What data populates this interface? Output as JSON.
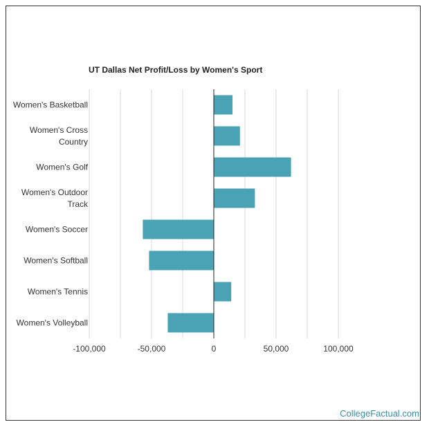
{
  "credit": "CollegeFactual.com",
  "colors": {
    "bar": "#4aa3b4",
    "grid": "#d9d9d9",
    "zero_axis": "#222222",
    "credit": "#3d8ea6"
  },
  "chart_data": {
    "type": "bar",
    "orientation": "horizontal",
    "title": "UT Dallas Net Profit/Loss by Women's Sport",
    "xlabel": "",
    "ylabel": "",
    "categories": [
      [
        "Women's Basketball"
      ],
      [
        "Women's Cross",
        "Country"
      ],
      [
        "Women's Golf"
      ],
      [
        "Women's Outdoor",
        "Track"
      ],
      [
        "Women's Soccer"
      ],
      [
        "Women's Softball"
      ],
      [
        "Women's Tennis"
      ],
      [
        "Women's Volleyball"
      ]
    ],
    "values": [
      15000,
      21000,
      62000,
      33000,
      -57000,
      -52000,
      14000,
      -37000
    ],
    "xlim": [
      -100000,
      100000
    ],
    "xticks": [
      -100000,
      -50000,
      0,
      50000,
      100000
    ],
    "xtick_labels": [
      "-100,000",
      "-50,000",
      "0",
      "50,000",
      "100,000"
    ],
    "minor_gridlines": [
      -75000,
      -25000,
      25000,
      75000
    ],
    "grid": true
  }
}
